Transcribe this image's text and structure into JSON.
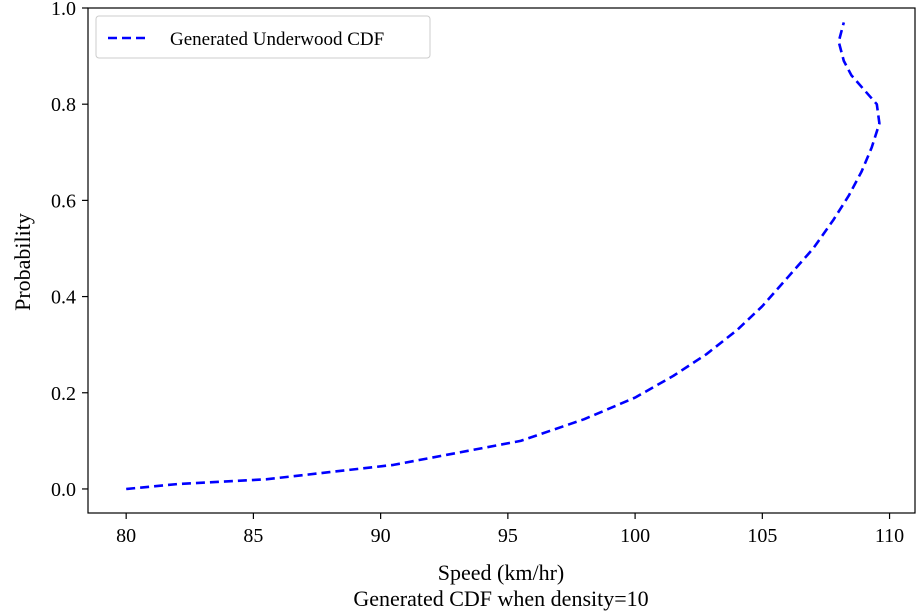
{
  "chart_data": {
    "type": "line",
    "title": "Generated CDF when density=10",
    "xlabel": "Speed (km/hr)",
    "ylabel": "Probability",
    "xlim": [
      78.5,
      111
    ],
    "ylim": [
      -0.05,
      1.0
    ],
    "x_ticks": [
      "80",
      "85",
      "90",
      "95",
      "100",
      "105",
      "110"
    ],
    "y_ticks": [
      "0.0",
      "0.2",
      "0.4",
      "0.6",
      "0.8",
      "1.0"
    ],
    "grid": false,
    "legend_position": "top-left",
    "series": [
      {
        "name": "Generated Underwood CDF",
        "color": "#0000ff",
        "line_style": "dashed",
        "x": [
          80.0,
          82.0,
          85.5,
          88.0,
          90.5,
          93.0,
          95.5,
          98.0,
          100.0,
          101.5,
          102.8,
          104.0,
          105.0,
          106.0,
          107.0,
          107.8,
          108.4,
          108.9,
          109.3,
          109.6,
          109.5,
          109.0,
          108.5,
          108.2,
          108.0,
          108.2
        ],
        "y": [
          0.0,
          0.01,
          0.02,
          0.035,
          0.05,
          0.075,
          0.1,
          0.145,
          0.19,
          0.235,
          0.28,
          0.33,
          0.38,
          0.44,
          0.5,
          0.56,
          0.61,
          0.66,
          0.71,
          0.76,
          0.8,
          0.83,
          0.86,
          0.89,
          0.93,
          0.97
        ]
      }
    ]
  }
}
